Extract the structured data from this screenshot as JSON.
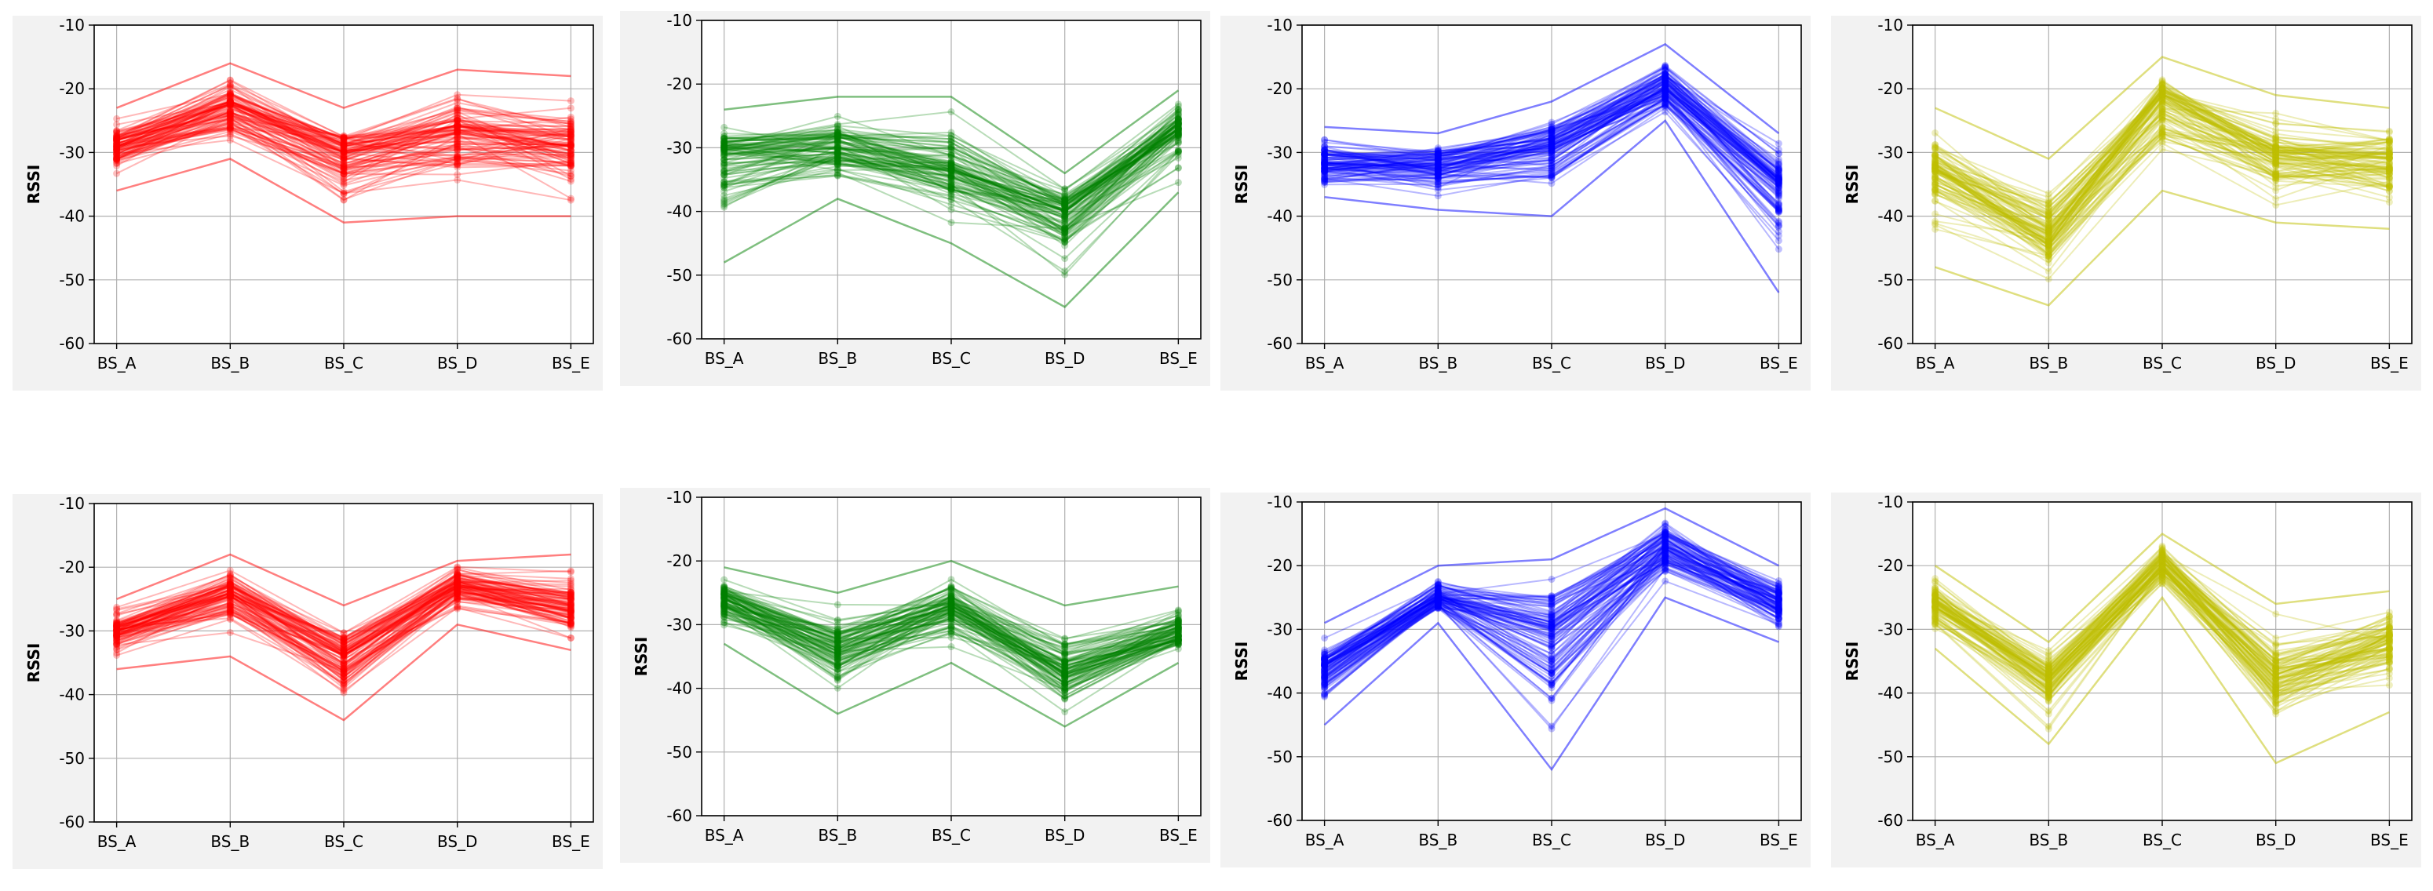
{
  "chart_data": [
    {
      "type": "line",
      "ylabel": "RSSI",
      "categories": [
        "BS_A",
        "BS_B",
        "BS_C",
        "BS_D",
        "BS_E"
      ],
      "yticks": [
        "-10",
        "-20",
        "-30",
        "-40",
        "-50",
        "-60"
      ],
      "ylim": [
        -60,
        -10
      ],
      "grid": true,
      "color": "#ff0000",
      "series_summary": {
        "min": [
          -36,
          -31,
          -41,
          -40,
          -40
        ],
        "median": [
          -29,
          -23,
          -30,
          -27,
          -29
        ],
        "max": [
          -23,
          -16,
          -23,
          -17,
          -18
        ]
      }
    },
    {
      "type": "line",
      "ylabel": "",
      "categories": [
        "BS_A",
        "BS_B",
        "BS_C",
        "BS_D",
        "BS_E"
      ],
      "yticks": [
        "-10",
        "-20",
        "-30",
        "-40",
        "-50",
        "-60"
      ],
      "ylim": [
        -60,
        -10
      ],
      "grid": true,
      "color": "#008000",
      "series_summary": {
        "min": [
          -48,
          -38,
          -45,
          -55,
          -37
        ],
        "median": [
          -31,
          -30,
          -33,
          -40,
          -27
        ],
        "max": [
          -24,
          -22,
          -22,
          -34,
          -21
        ]
      }
    },
    {
      "type": "line",
      "ylabel": "RSSI",
      "categories": [
        "BS_A",
        "BS_B",
        "BS_C",
        "BS_D",
        "BS_E"
      ],
      "yticks": [
        "-10",
        "-20",
        "-30",
        "-40",
        "-50",
        "-60"
      ],
      "ylim": [
        -60,
        -10
      ],
      "grid": true,
      "color": "#0000ff",
      "series_summary": {
        "min": [
          -37,
          -39,
          -40,
          -25,
          -52
        ],
        "median": [
          -32,
          -32,
          -29,
          -20,
          -35
        ],
        "max": [
          -26,
          -27,
          -22,
          -13,
          -27
        ]
      }
    },
    {
      "type": "line",
      "ylabel": "RSSI",
      "categories": [
        "BS_A",
        "BS_B",
        "BS_C",
        "BS_D",
        "BS_E"
      ],
      "yticks": [
        "-10",
        "-20",
        "-30",
        "-40",
        "-50",
        "-60"
      ],
      "ylim": [
        -60,
        -10
      ],
      "grid": true,
      "color": "#bfbf00",
      "series_summary": {
        "min": [
          -48,
          -54,
          -36,
          -41,
          -42
        ],
        "median": [
          -33,
          -43,
          -22,
          -30,
          -31
        ],
        "max": [
          -23,
          -31,
          -15,
          -21,
          -23
        ]
      }
    },
    {
      "type": "line",
      "ylabel": "RSSI",
      "categories": [
        "BS_A",
        "BS_B",
        "BS_C",
        "BS_D",
        "BS_E"
      ],
      "yticks": [
        "-10",
        "-20",
        "-30",
        "-40",
        "-50",
        "-60"
      ],
      "ylim": [
        -60,
        -10
      ],
      "grid": true,
      "color": "#ff0000",
      "series_summary": {
        "min": [
          -36,
          -34,
          -44,
          -29,
          -33
        ],
        "median": [
          -30,
          -24,
          -34,
          -23,
          -26
        ],
        "max": [
          -25,
          -18,
          -26,
          -19,
          -18
        ]
      }
    },
    {
      "type": "line",
      "ylabel": "RSSI",
      "categories": [
        "BS_A",
        "BS_B",
        "BS_C",
        "BS_D",
        "BS_E"
      ],
      "yticks": [
        "-10",
        "-20",
        "-30",
        "-40",
        "-50",
        "-60"
      ],
      "ylim": [
        -60,
        -10
      ],
      "grid": true,
      "color": "#008000",
      "series_summary": {
        "min": [
          -33,
          -44,
          -36,
          -46,
          -36
        ],
        "median": [
          -26,
          -33,
          -27,
          -37,
          -31
        ],
        "max": [
          -21,
          -25,
          -20,
          -27,
          -24
        ]
      }
    },
    {
      "type": "line",
      "ylabel": "RSSI",
      "categories": [
        "BS_A",
        "BS_B",
        "BS_C",
        "BS_D",
        "BS_E"
      ],
      "yticks": [
        "-10",
        "-20",
        "-30",
        "-40",
        "-50",
        "-60"
      ],
      "ylim": [
        -60,
        -10
      ],
      "grid": true,
      "color": "#0000ff",
      "series_summary": {
        "min": [
          -45,
          -29,
          -52,
          -25,
          -32
        ],
        "median": [
          -36,
          -25,
          -30,
          -17,
          -26
        ],
        "max": [
          -29,
          -20,
          -19,
          -11,
          -20
        ]
      }
    },
    {
      "type": "line",
      "ylabel": "RSSI",
      "categories": [
        "BS_A",
        "BS_B",
        "BS_C",
        "BS_D",
        "BS_E"
      ],
      "yticks": [
        "-10",
        "-20",
        "-30",
        "-40",
        "-50",
        "-60"
      ],
      "ylim": [
        -60,
        -10
      ],
      "grid": true,
      "color": "#bfbf00",
      "series_summary": {
        "min": [
          -33,
          -48,
          -25,
          -51,
          -43
        ],
        "median": [
          -26,
          -38,
          -20,
          -38,
          -32
        ],
        "max": [
          -20,
          -32,
          -15,
          -26,
          -24
        ]
      }
    }
  ]
}
